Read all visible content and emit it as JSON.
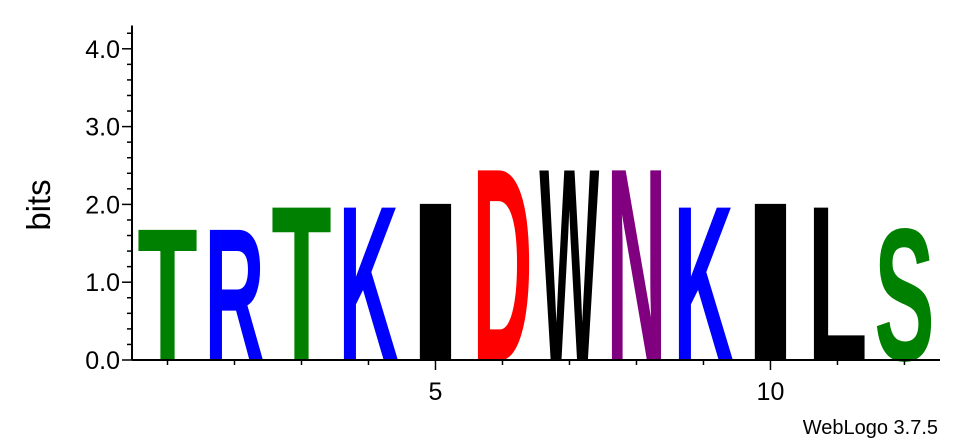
{
  "chart_data": {
    "type": "sequence-logo",
    "ylabel": "bits",
    "ylim": [
      0,
      4.3
    ],
    "y_ticks": [
      "0.0",
      "1.0",
      "2.0",
      "3.0",
      "4.0"
    ],
    "y_tick_values": [
      0,
      1,
      2,
      3,
      4
    ],
    "x_ticks": [
      "5",
      "10"
    ],
    "x_tick_values": [
      5,
      10
    ],
    "xlim": [
      0.5,
      12.5
    ],
    "positions": [
      {
        "pos": 1,
        "letter": "T",
        "bits": 1.75,
        "color": "#008000"
      },
      {
        "pos": 2,
        "letter": "R",
        "bits": 1.75,
        "color": "#0000ff"
      },
      {
        "pos": 3,
        "letter": "T",
        "bits": 2.05,
        "color": "#008000"
      },
      {
        "pos": 4,
        "letter": "K",
        "bits": 2.05,
        "color": "#0000ff"
      },
      {
        "pos": 5,
        "letter": "I",
        "bits": 2.1,
        "color": "#000000"
      },
      {
        "pos": 6,
        "letter": "D",
        "bits": 2.55,
        "color": "#ff0000"
      },
      {
        "pos": 7,
        "letter": "W",
        "bits": 2.55,
        "color": "#000000"
      },
      {
        "pos": 8,
        "letter": "N",
        "bits": 2.55,
        "color": "#800080"
      },
      {
        "pos": 9,
        "letter": "K",
        "bits": 2.05,
        "color": "#0000ff"
      },
      {
        "pos": 10,
        "letter": "I",
        "bits": 2.1,
        "color": "#000000"
      },
      {
        "pos": 11,
        "letter": "L",
        "bits": 2.05,
        "color": "#000000"
      },
      {
        "pos": 12,
        "letter": "S",
        "bits": 1.75,
        "color": "#008000"
      }
    ]
  },
  "credit": "WebLogo 3.7.5"
}
